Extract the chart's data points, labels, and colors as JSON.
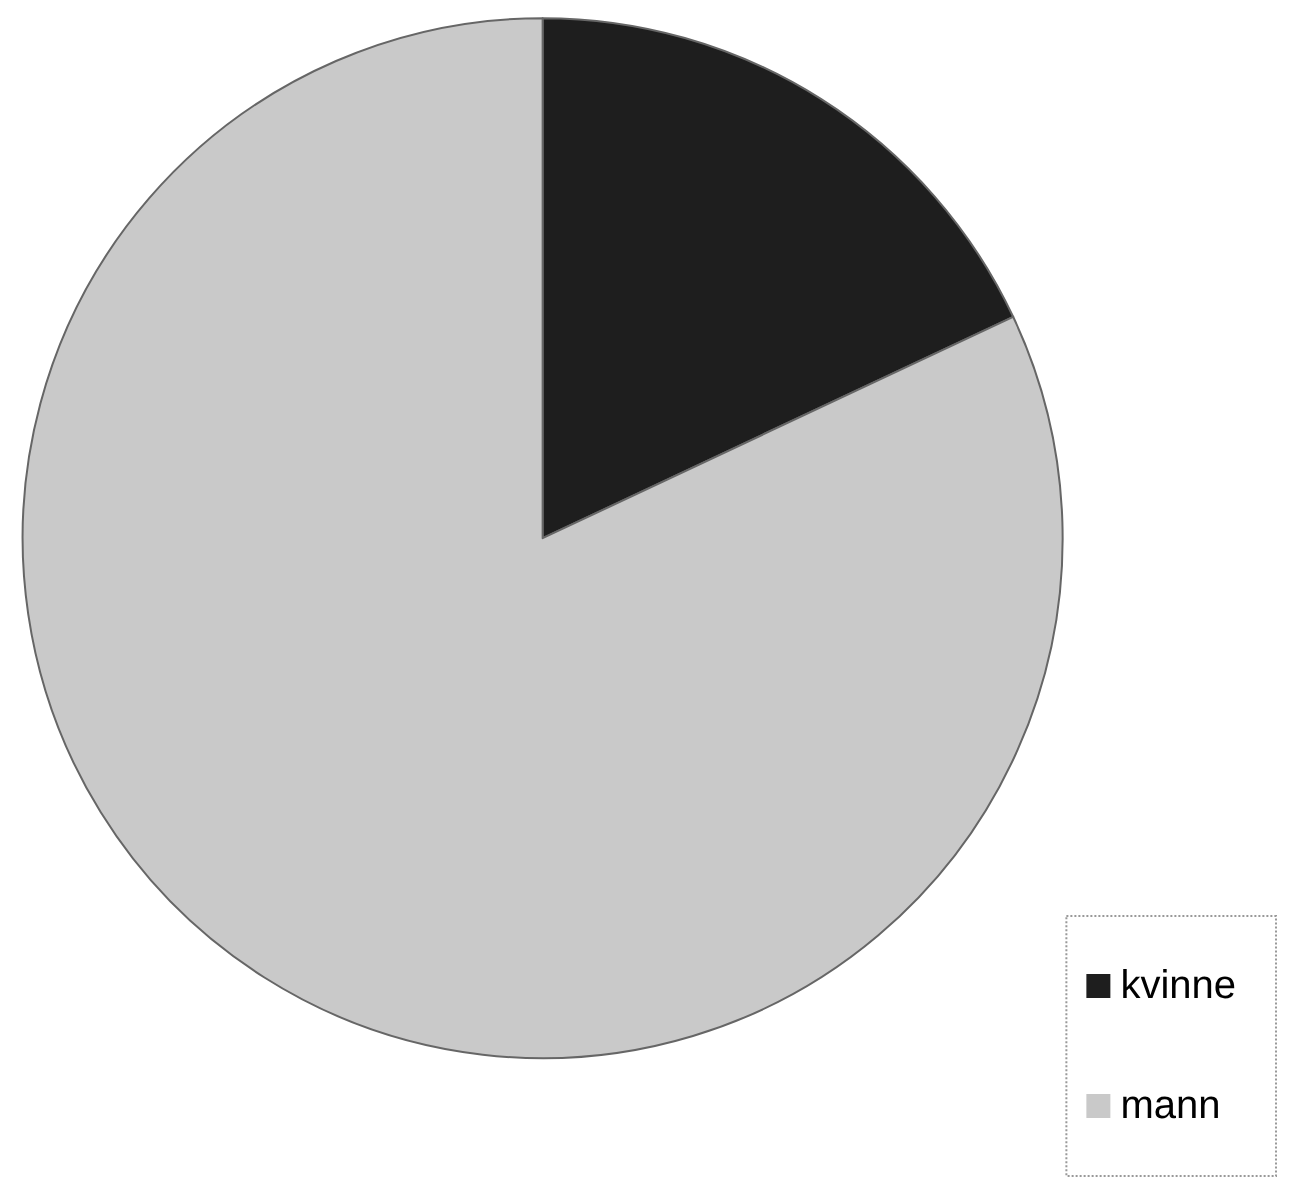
{
  "chart_data": {
    "type": "pie",
    "categories": [
      "kvinne",
      "mann"
    ],
    "values": [
      18,
      82
    ],
    "colors": [
      "#1e1e1e",
      "#c9c9c9"
    ],
    "legend": "bottom right"
  }
}
